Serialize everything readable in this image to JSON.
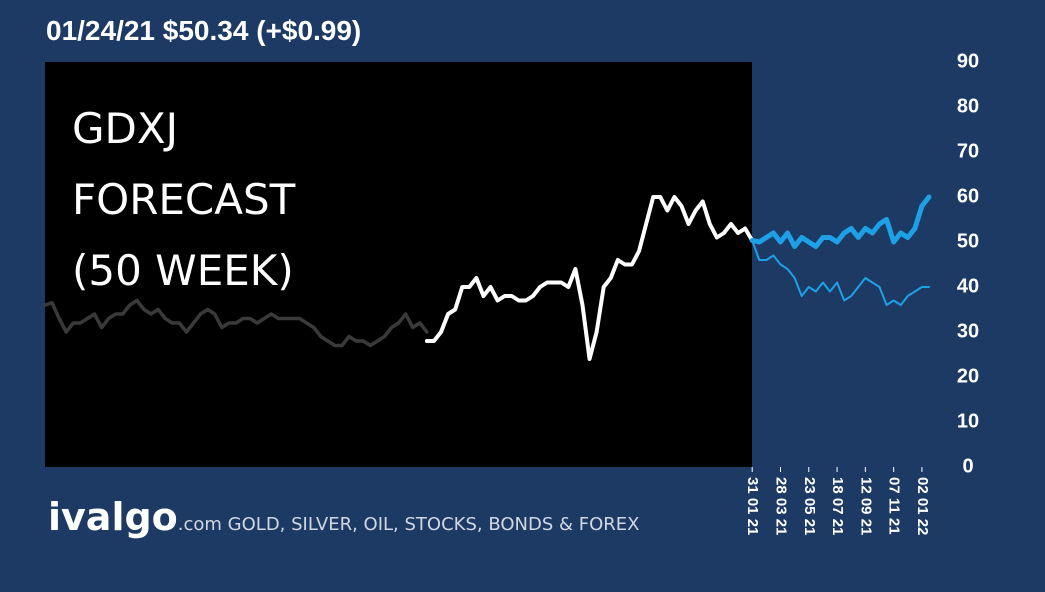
{
  "chart_data": {
    "type": "line",
    "title": "01/24/21 $50.34 (+$0.99)",
    "annotation": [
      "GDXJ",
      "FORECAST",
      "(50 WEEK)"
    ],
    "footer_brand": "ivalgo",
    "footer_text": ".com GOLD, SILVER, OIL, STOCKS, BONDS & FOREX",
    "categories": [
      null,
      null,
      null,
      null,
      null,
      null,
      null,
      null,
      null,
      null,
      null,
      null,
      null,
      null,
      null,
      null,
      null,
      null,
      null,
      null,
      null,
      null,
      null,
      null,
      null,
      null,
      null,
      null,
      null,
      null,
      null,
      null,
      null,
      null,
      null,
      null,
      null,
      null,
      null,
      null,
      null,
      null,
      null,
      null,
      null,
      null,
      null,
      null,
      null,
      null,
      null,
      null,
      null,
      null,
      null,
      null,
      null,
      null,
      null,
      null,
      null,
      null,
      null,
      null,
      null,
      null,
      null,
      null,
      null,
      null,
      null,
      null,
      null,
      null,
      null,
      null,
      null,
      null,
      null,
      null,
      null,
      null,
      null,
      null,
      null,
      null,
      null,
      null,
      null,
      null,
      null,
      null,
      null,
      null,
      null,
      null,
      null,
      null,
      null,
      null,
      "31 01 21",
      null,
      null,
      null,
      "28 03 21",
      null,
      null,
      null,
      "23 05 21",
      null,
      null,
      null,
      "18 07 21",
      null,
      null,
      null,
      "12 09 21",
      null,
      null,
      null,
      "07 11 21",
      null,
      null,
      null,
      "02 01 22",
      null
    ],
    "series": [
      {
        "color": "#3a3a3a",
        "line_width": 3.5,
        "values": [
          36,
          36.5,
          33,
          30,
          32,
          32,
          33,
          34,
          31,
          33,
          34,
          34,
          36,
          37,
          35,
          34,
          35,
          33,
          32,
          32,
          30,
          32,
          34,
          35,
          34,
          31,
          32,
          32,
          33,
          33,
          32,
          33,
          34,
          33,
          33,
          33,
          33,
          32,
          31,
          29,
          28,
          27,
          27,
          29,
          28,
          28,
          27,
          28,
          29,
          31,
          32,
          34,
          31,
          32,
          30,
          null,
          null,
          null,
          null,
          null,
          null,
          null,
          null,
          null,
          null,
          null,
          null,
          null,
          null,
          null,
          null,
          null,
          null,
          null,
          null,
          null,
          null,
          null,
          null,
          null,
          null,
          null,
          null,
          null,
          null,
          null,
          null,
          null,
          null,
          null,
          null,
          null,
          null,
          null,
          null,
          null,
          null,
          null,
          null,
          null,
          null,
          null,
          null,
          null,
          null,
          null,
          null,
          null,
          null,
          null,
          null,
          null,
          null,
          null,
          null,
          null,
          null,
          null,
          null,
          null,
          null,
          null,
          null,
          null,
          null,
          null
        ]
      },
      {
        "color": "#ffffff",
        "line_width": 4,
        "values": [
          null,
          null,
          null,
          null,
          null,
          null,
          null,
          null,
          null,
          null,
          null,
          null,
          null,
          null,
          null,
          null,
          null,
          null,
          null,
          null,
          null,
          null,
          null,
          null,
          null,
          null,
          null,
          null,
          null,
          null,
          null,
          null,
          null,
          null,
          null,
          null,
          null,
          null,
          null,
          null,
          null,
          null,
          null,
          null,
          null,
          null,
          null,
          null,
          null,
          null,
          null,
          null,
          null,
          null,
          28,
          28,
          30,
          34,
          35,
          40,
          40,
          42,
          38,
          40,
          37,
          38,
          38,
          37,
          37,
          38,
          40,
          41,
          41,
          41,
          40,
          44,
          36,
          24,
          30,
          40,
          42,
          46,
          45,
          45,
          48,
          54,
          60,
          60,
          57,
          60,
          58,
          54,
          57,
          59,
          54,
          51,
          52,
          54,
          52,
          53,
          50.34,
          null,
          null,
          null,
          null,
          null,
          null,
          null,
          null,
          null,
          null,
          null,
          null,
          null,
          null,
          null,
          null,
          null,
          null,
          null,
          null,
          null,
          null,
          null,
          null,
          null
        ]
      },
      {
        "color": "#1ea0e6",
        "line_width": 5,
        "values": [
          null,
          null,
          null,
          null,
          null,
          null,
          null,
          null,
          null,
          null,
          null,
          null,
          null,
          null,
          null,
          null,
          null,
          null,
          null,
          null,
          null,
          null,
          null,
          null,
          null,
          null,
          null,
          null,
          null,
          null,
          null,
          null,
          null,
          null,
          null,
          null,
          null,
          null,
          null,
          null,
          null,
          null,
          null,
          null,
          null,
          null,
          null,
          null,
          null,
          null,
          null,
          null,
          null,
          null,
          null,
          null,
          null,
          null,
          null,
          null,
          null,
          null,
          null,
          null,
          null,
          null,
          null,
          null,
          null,
          null,
          null,
          null,
          null,
          null,
          null,
          null,
          null,
          null,
          null,
          null,
          null,
          null,
          null,
          null,
          null,
          null,
          null,
          null,
          null,
          null,
          null,
          null,
          null,
          null,
          null,
          null,
          null,
          null,
          null,
          null,
          50.34,
          50,
          51,
          52,
          50,
          52,
          49,
          51,
          50,
          49,
          51,
          51,
          50,
          52,
          53,
          51,
          53,
          52,
          54,
          55,
          50,
          52,
          51,
          53,
          58,
          60
        ]
      },
      {
        "color": "#1ea0e6",
        "line_width": 2,
        "values": [
          null,
          null,
          null,
          null,
          null,
          null,
          null,
          null,
          null,
          null,
          null,
          null,
          null,
          null,
          null,
          null,
          null,
          null,
          null,
          null,
          null,
          null,
          null,
          null,
          null,
          null,
          null,
          null,
          null,
          null,
          null,
          null,
          null,
          null,
          null,
          null,
          null,
          null,
          null,
          null,
          null,
          null,
          null,
          null,
          null,
          null,
          null,
          null,
          null,
          null,
          null,
          null,
          null,
          null,
          null,
          null,
          null,
          null,
          null,
          null,
          null,
          null,
          null,
          null,
          null,
          null,
          null,
          null,
          null,
          null,
          null,
          null,
          null,
          null,
          null,
          null,
          null,
          null,
          null,
          null,
          null,
          null,
          null,
          null,
          null,
          null,
          null,
          null,
          null,
          null,
          null,
          null,
          null,
          null,
          null,
          null,
          null,
          null,
          null,
          null,
          50.34,
          46,
          46,
          47,
          45,
          44,
          42,
          38,
          40,
          39,
          41,
          39,
          41,
          37,
          38,
          40,
          42,
          41,
          40,
          36,
          37,
          36,
          38,
          39,
          40,
          40
        ]
      }
    ],
    "ylim": [
      0,
      90
    ],
    "yticks": [
      0,
      10,
      20,
      30,
      40,
      50,
      60,
      70,
      80,
      90
    ],
    "grid": false
  }
}
